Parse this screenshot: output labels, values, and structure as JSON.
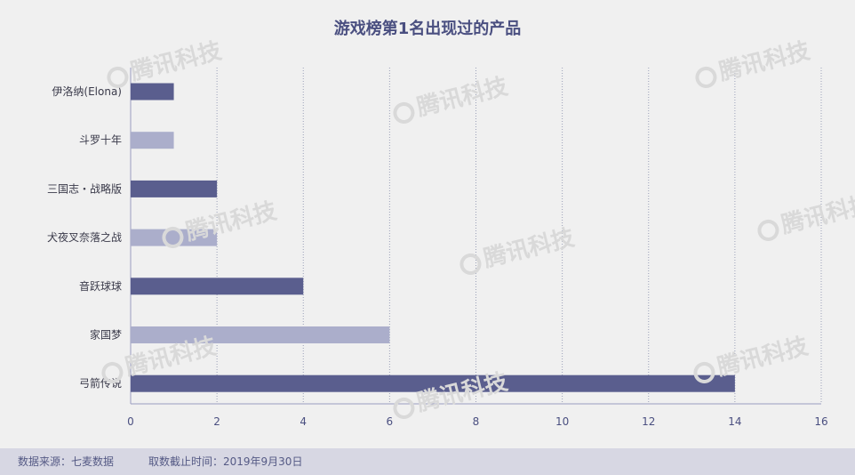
{
  "title": "游戏榜第1名出现过的产品",
  "watermark_text": "腾讯科技",
  "footer": {
    "source": "数据来源：七麦数据",
    "cutoff": "取数截止时间：2019年9月30日"
  },
  "colors": {
    "dark_bar": "#5a5e8e",
    "light_bar": "#abaecb",
    "axis": "#9a9cc0",
    "text": "#4a4f80"
  },
  "chart_data": {
    "type": "bar",
    "orientation": "horizontal",
    "title": "游戏榜第1名出现过的产品",
    "categories": [
      "伊洛纳(Elona)",
      "斗罗十年",
      "三国志・战略版",
      "犬夜叉奈落之战",
      "音跃球球",
      "家国梦",
      "弓箭传说"
    ],
    "values": [
      1,
      1,
      2,
      2,
      4,
      6,
      14
    ],
    "bar_shades": [
      "dark",
      "light",
      "dark",
      "light",
      "dark",
      "light",
      "dark"
    ],
    "xlim": [
      0,
      16
    ],
    "xticks": [
      0,
      2,
      4,
      6,
      8,
      10,
      12,
      14,
      16
    ],
    "grid": "vertical dotted",
    "legend": "none"
  }
}
